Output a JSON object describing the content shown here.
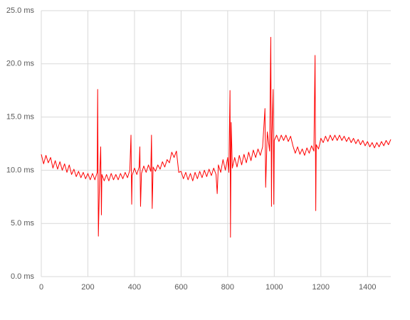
{
  "chart_data": {
    "type": "line",
    "x": [
      0,
      10,
      20,
      30,
      40,
      50,
      60,
      70,
      80,
      90,
      100,
      110,
      120,
      130,
      140,
      150,
      160,
      170,
      180,
      190,
      200,
      210,
      220,
      230,
      240,
      242,
      245,
      250,
      255,
      258,
      260,
      270,
      280,
      290,
      300,
      310,
      320,
      330,
      340,
      350,
      360,
      370,
      380,
      385,
      388,
      390,
      400,
      410,
      420,
      423,
      426,
      430,
      440,
      450,
      460,
      470,
      473,
      476,
      480,
      490,
      500,
      510,
      520,
      530,
      540,
      550,
      560,
      570,
      580,
      590,
      600,
      610,
      620,
      630,
      640,
      650,
      660,
      670,
      680,
      690,
      700,
      710,
      720,
      730,
      740,
      750,
      755,
      760,
      770,
      780,
      790,
      800,
      805,
      810,
      812,
      815,
      820,
      830,
      840,
      850,
      860,
      870,
      880,
      890,
      900,
      910,
      920,
      930,
      940,
      950,
      960,
      963,
      970,
      980,
      985,
      988,
      990,
      995,
      998,
      1000,
      1010,
      1020,
      1030,
      1040,
      1050,
      1060,
      1070,
      1080,
      1090,
      1100,
      1110,
      1120,
      1130,
      1140,
      1150,
      1160,
      1170,
      1175,
      1178,
      1180,
      1190,
      1200,
      1210,
      1220,
      1230,
      1240,
      1250,
      1260,
      1270,
      1280,
      1290,
      1300,
      1310,
      1320,
      1330,
      1340,
      1350,
      1360,
      1370,
      1380,
      1390,
      1400,
      1410,
      1420,
      1430,
      1440,
      1450,
      1460,
      1470,
      1480,
      1490,
      1500
    ],
    "series": [
      {
        "color": "#ff0000",
        "values": [
          11.5,
          10.6,
          11.4,
          10.7,
          11.2,
          10.2,
          10.9,
          10.1,
          10.8,
          10.0,
          10.6,
          9.8,
          10.5,
          9.6,
          10.1,
          9.4,
          9.9,
          9.3,
          9.8,
          9.2,
          9.7,
          9.1,
          9.7,
          9.1,
          9.8,
          17.6,
          3.8,
          9.0,
          12.2,
          5.8,
          9.6,
          9.0,
          9.6,
          9.0,
          9.7,
          9.1,
          9.6,
          9.1,
          9.7,
          9.2,
          9.8,
          9.3,
          10.0,
          13.3,
          6.8,
          9.5,
          10.2,
          9.6,
          10.3,
          12.2,
          6.6,
          9.7,
          10.4,
          9.8,
          10.5,
          9.9,
          13.3,
          6.4,
          10.3,
          9.9,
          10.5,
          10.1,
          10.8,
          10.3,
          11.0,
          10.7,
          11.7,
          11.2,
          11.8,
          9.8,
          9.9,
          9.2,
          9.8,
          9.1,
          9.7,
          9.0,
          9.8,
          9.2,
          9.9,
          9.3,
          10.0,
          9.4,
          10.1,
          9.5,
          10.2,
          9.6,
          7.8,
          10.5,
          9.8,
          11.0,
          10.0,
          11.2,
          9.8,
          17.5,
          3.7,
          14.5,
          10.2,
          11.2,
          10.3,
          11.4,
          10.5,
          11.5,
          10.7,
          11.7,
          10.9,
          11.9,
          11.2,
          12.0,
          11.4,
          12.2,
          15.8,
          8.4,
          13.6,
          11.8,
          22.5,
          6.6,
          13.3,
          17.6,
          6.8,
          12.8,
          13.3,
          12.7,
          13.3,
          12.8,
          13.3,
          12.7,
          13.2,
          12.3,
          11.6,
          12.2,
          11.5,
          12.0,
          11.4,
          12.1,
          11.6,
          12.3,
          11.8,
          20.8,
          6.2,
          12.4,
          12.0,
          13.0,
          12.6,
          13.2,
          12.7,
          13.3,
          12.8,
          13.3,
          12.8,
          13.3,
          12.8,
          13.2,
          12.7,
          13.1,
          12.6,
          13.0,
          12.5,
          12.9,
          12.4,
          12.8,
          12.3,
          12.7,
          12.2,
          12.6,
          12.1,
          12.6,
          12.2,
          12.7,
          12.3,
          12.8,
          12.4,
          12.9
        ]
      }
    ],
    "xlim": [
      0,
      1500
    ],
    "xticks": [
      0,
      200,
      400,
      600,
      800,
      1000,
      1200,
      1400
    ],
    "ylim": [
      0,
      25
    ],
    "yticks": [
      {
        "value": 0,
        "label": "0.0 ms"
      },
      {
        "value": 5,
        "label": "5.0 ms"
      },
      {
        "value": 10,
        "label": "10.0 ms"
      },
      {
        "value": 15,
        "label": "15.0 ms"
      },
      {
        "value": 20,
        "label": "20.0 ms"
      },
      {
        "value": 25,
        "label": "25.0 ms"
      }
    ],
    "grid": true
  }
}
